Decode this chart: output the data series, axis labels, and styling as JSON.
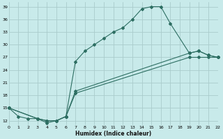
{
  "xlabel": "Humidex (Indice chaleur)",
  "bg_color": "#c8eaea",
  "grid_color": "#aacccc",
  "line_color": "#2d6e62",
  "xlim": [
    0,
    22
  ],
  "ylim": [
    11,
    40
  ],
  "yticks": [
    12,
    15,
    18,
    21,
    24,
    27,
    30,
    33,
    36,
    39
  ],
  "xticks": [
    0,
    1,
    2,
    3,
    4,
    5,
    6,
    7,
    8,
    9,
    10,
    11,
    12,
    13,
    14,
    15,
    16,
    17,
    18,
    19,
    20,
    21,
    22
  ],
  "line1_x": [
    0,
    1,
    2,
    3,
    4,
    5,
    6,
    7,
    8,
    9,
    10,
    11,
    12,
    13,
    14,
    15,
    16,
    17,
    19,
    20,
    21,
    22
  ],
  "line1_y": [
    15,
    13,
    12.5,
    12.5,
    11.5,
    12,
    13,
    26,
    28.5,
    30,
    31.5,
    33,
    34,
    36,
    38.5,
    39,
    39,
    35,
    28,
    28.5,
    27.5,
    27
  ],
  "line2_x": [
    0,
    3,
    4,
    5,
    6,
    7,
    19,
    20,
    21,
    22
  ],
  "line2_y": [
    15,
    12.5,
    12,
    12,
    13,
    19,
    28,
    28.5,
    27.5,
    27
  ],
  "line3_x": [
    0,
    3,
    4,
    5,
    6,
    7,
    19,
    20,
    21,
    22
  ],
  "line3_y": [
    15,
    12.5,
    12,
    12,
    13,
    18.5,
    27,
    27,
    27,
    27
  ]
}
